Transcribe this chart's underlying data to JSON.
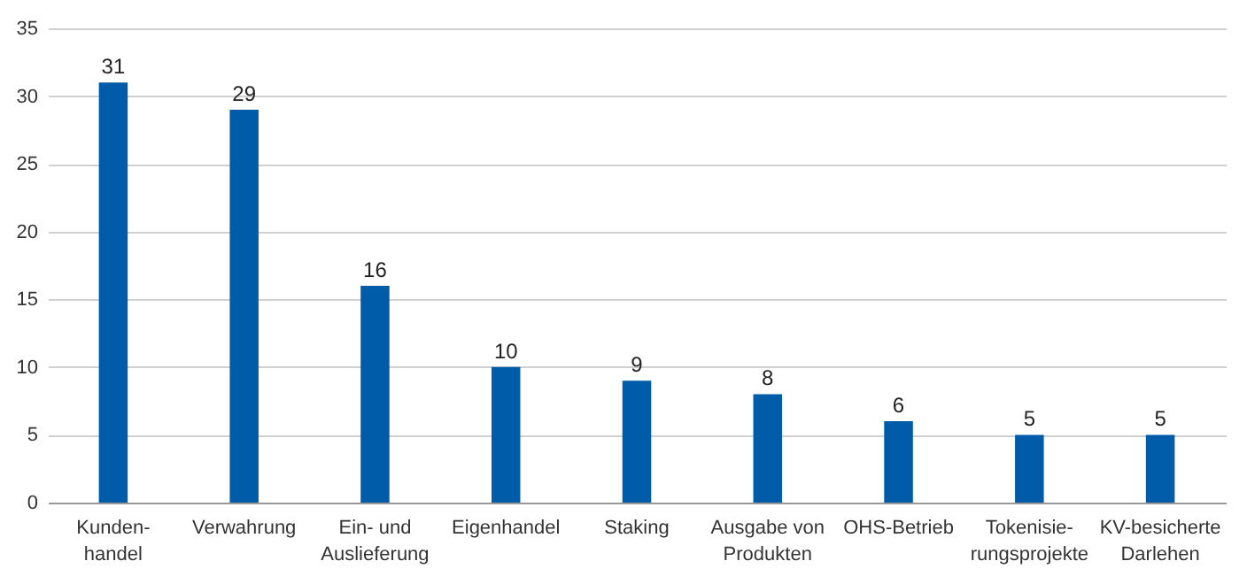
{
  "chart_data": {
    "type": "bar",
    "categories": [
      "Kunden-\nhandel",
      "Verwahrung",
      "Ein- und\nAuslieferung",
      "Eigenhandel",
      "Staking",
      "Ausgabe von\nProdukten",
      "OHS-Betrieb",
      "Tokenisie-\nrungsprojekte",
      "KV-besicherte\nDarlehen"
    ],
    "values": [
      31,
      29,
      16,
      10,
      9,
      8,
      6,
      5,
      5
    ],
    "color": "#005ca9",
    "ylim": [
      0,
      35
    ],
    "yticks": [
      0,
      5,
      10,
      15,
      20,
      25,
      30,
      35
    ],
    "grid": "y",
    "data_labels": true
  }
}
